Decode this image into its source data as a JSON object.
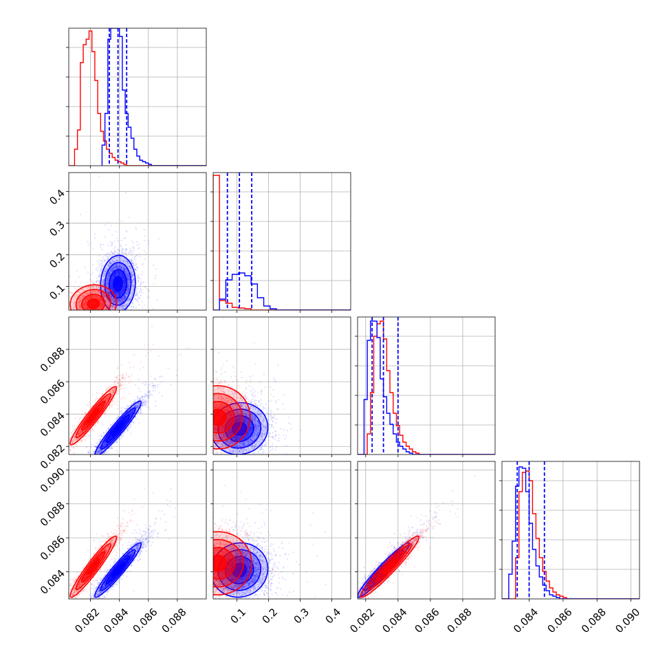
{
  "chart_data": {
    "type": "corner",
    "title": "",
    "grid": true,
    "legend": "",
    "colors": {
      "series_a": "#ff0000",
      "series_b": "#0000ff"
    },
    "parameters": [
      {
        "range": [
          0.0805,
          0.09
        ],
        "ticks": [
          "0.082",
          "0.084",
          "0.086",
          "0.088"
        ]
      },
      {
        "range": [
          0.025,
          0.46
        ],
        "ticks": [
          "0.1",
          "0.2",
          "0.3",
          "0.4"
        ]
      },
      {
        "range": [
          0.0815,
          0.09
        ],
        "ticks": [
          "0.082",
          "0.084",
          "0.086",
          "0.088"
        ]
      },
      {
        "range": [
          0.0824,
          0.0905
        ],
        "ticks": [
          "0.084",
          "0.086",
          "0.088",
          "0.090"
        ]
      }
    ],
    "marginals": [
      {
        "blue_bins": [
          [
            0.0828,
            0.083,
            0.15
          ],
          [
            0.083,
            0.0832,
            0.38
          ],
          [
            0.0832,
            0.0834,
            0.92
          ],
          [
            0.0834,
            0.0836,
            1.0
          ],
          [
            0.0836,
            0.0838,
            1.0
          ],
          [
            0.0838,
            0.084,
            1.0
          ],
          [
            0.084,
            0.0842,
            0.94
          ],
          [
            0.0842,
            0.0844,
            0.55
          ],
          [
            0.0844,
            0.0846,
            0.38
          ],
          [
            0.0846,
            0.0848,
            0.28
          ],
          [
            0.0848,
            0.085,
            0.2
          ],
          [
            0.085,
            0.0852,
            0.12
          ],
          [
            0.0852,
            0.0854,
            0.07
          ],
          [
            0.0854,
            0.0856,
            0.04
          ],
          [
            0.0856,
            0.0858,
            0.03
          ],
          [
            0.0858,
            0.086,
            0.02
          ],
          [
            0.086,
            0.0862,
            0.01
          ]
        ],
        "red_bins": [
          [
            0.0805,
            0.0809,
            0.0
          ],
          [
            0.0809,
            0.0811,
            0.12
          ],
          [
            0.0811,
            0.0813,
            0.26
          ],
          [
            0.0813,
            0.0815,
            0.75
          ],
          [
            0.0815,
            0.0817,
            0.88
          ],
          [
            0.0817,
            0.0819,
            0.92
          ],
          [
            0.0819,
            0.0821,
            0.98
          ],
          [
            0.0821,
            0.0823,
            0.83
          ],
          [
            0.0823,
            0.0825,
            0.62
          ],
          [
            0.0825,
            0.0827,
            0.38
          ],
          [
            0.0827,
            0.0829,
            0.25
          ],
          [
            0.0829,
            0.0831,
            0.18
          ],
          [
            0.0831,
            0.0833,
            0.12
          ],
          [
            0.0833,
            0.0835,
            0.09
          ],
          [
            0.0835,
            0.0837,
            0.06
          ],
          [
            0.0837,
            0.0839,
            0.04
          ],
          [
            0.0839,
            0.0841,
            0.03
          ],
          [
            0.0841,
            0.0843,
            0.02
          ],
          [
            0.0843,
            0.0845,
            0.01
          ]
        ],
        "quantiles": [
          0.0833,
          0.0839,
          0.0845
        ]
      },
      {
        "blue_bins": [
          [
            0.025,
            0.045,
            0.0
          ],
          [
            0.045,
            0.065,
            0.08
          ],
          [
            0.065,
            0.085,
            0.22
          ],
          [
            0.085,
            0.105,
            0.26
          ],
          [
            0.105,
            0.125,
            0.27
          ],
          [
            0.125,
            0.145,
            0.25
          ],
          [
            0.145,
            0.165,
            0.19
          ],
          [
            0.165,
            0.185,
            0.09
          ],
          [
            0.185,
            0.205,
            0.03
          ],
          [
            0.205,
            0.225,
            0.01
          ]
        ],
        "red_bins": [
          [
            0.025,
            0.045,
            0.98
          ],
          [
            0.045,
            0.065,
            0.07
          ],
          [
            0.065,
            0.085,
            0.05
          ],
          [
            0.085,
            0.105,
            0.02
          ],
          [
            0.105,
            0.125,
            0.015
          ],
          [
            0.125,
            0.145,
            0.01
          ]
        ],
        "quantiles": [
          0.07,
          0.108,
          0.147
        ]
      },
      {
        "blue_bins": [
          [
            0.0815,
            0.0819,
            0.0
          ],
          [
            0.0819,
            0.0821,
            0.4
          ],
          [
            0.0821,
            0.0823,
            0.83
          ],
          [
            0.0823,
            0.0825,
            0.97
          ],
          [
            0.0825,
            0.0827,
            0.97
          ],
          [
            0.0827,
            0.0829,
            0.85
          ],
          [
            0.0829,
            0.0831,
            0.55
          ],
          [
            0.0831,
            0.0833,
            0.42
          ],
          [
            0.0833,
            0.0835,
            0.3
          ],
          [
            0.0835,
            0.0837,
            0.22
          ],
          [
            0.0837,
            0.0839,
            0.15
          ],
          [
            0.0839,
            0.0841,
            0.09
          ],
          [
            0.0841,
            0.0843,
            0.06
          ],
          [
            0.0843,
            0.0845,
            0.04
          ],
          [
            0.0845,
            0.0847,
            0.02
          ],
          [
            0.0847,
            0.0849,
            0.01
          ]
        ],
        "red_bins": [
          [
            0.0815,
            0.0821,
            0.0
          ],
          [
            0.0821,
            0.0823,
            0.15
          ],
          [
            0.0823,
            0.0825,
            0.45
          ],
          [
            0.0825,
            0.0827,
            0.86
          ],
          [
            0.0827,
            0.0829,
            0.95
          ],
          [
            0.0829,
            0.0831,
            0.97
          ],
          [
            0.0831,
            0.0833,
            0.84
          ],
          [
            0.0833,
            0.0835,
            0.61
          ],
          [
            0.0835,
            0.0837,
            0.45
          ],
          [
            0.0837,
            0.0839,
            0.3
          ],
          [
            0.0839,
            0.0841,
            0.21
          ],
          [
            0.0841,
            0.0843,
            0.14
          ],
          [
            0.0843,
            0.0845,
            0.09
          ],
          [
            0.0845,
            0.0847,
            0.06
          ],
          [
            0.0847,
            0.0849,
            0.04
          ],
          [
            0.0849,
            0.0851,
            0.02
          ],
          [
            0.0851,
            0.0853,
            0.01
          ]
        ],
        "quantiles": [
          0.0824,
          0.0831,
          0.084
        ]
      },
      {
        "blue_bins": [
          [
            0.0824,
            0.0828,
            0.0
          ],
          [
            0.0828,
            0.083,
            0.18
          ],
          [
            0.083,
            0.0832,
            0.42
          ],
          [
            0.0832,
            0.0834,
            0.82
          ],
          [
            0.0834,
            0.0836,
            0.96
          ],
          [
            0.0836,
            0.0838,
            0.95
          ],
          [
            0.0838,
            0.084,
            0.78
          ],
          [
            0.084,
            0.0842,
            0.55
          ],
          [
            0.0842,
            0.0844,
            0.36
          ],
          [
            0.0844,
            0.0846,
            0.24
          ],
          [
            0.0846,
            0.0848,
            0.16
          ],
          [
            0.0848,
            0.085,
            0.1
          ],
          [
            0.085,
            0.0852,
            0.06
          ],
          [
            0.0852,
            0.0854,
            0.03
          ],
          [
            0.0854,
            0.0856,
            0.02
          ],
          [
            0.0856,
            0.0858,
            0.01
          ]
        ],
        "red_bins": [
          [
            0.0824,
            0.0832,
            0.0
          ],
          [
            0.0832,
            0.0834,
            0.3
          ],
          [
            0.0834,
            0.0836,
            0.78
          ],
          [
            0.0836,
            0.0838,
            0.92
          ],
          [
            0.0838,
            0.084,
            0.93
          ],
          [
            0.084,
            0.0842,
            0.86
          ],
          [
            0.0842,
            0.0844,
            0.62
          ],
          [
            0.0844,
            0.0846,
            0.44
          ],
          [
            0.0846,
            0.0848,
            0.3
          ],
          [
            0.0848,
            0.085,
            0.2
          ],
          [
            0.085,
            0.0852,
            0.13
          ],
          [
            0.0852,
            0.0854,
            0.08
          ],
          [
            0.0854,
            0.0856,
            0.05
          ],
          [
            0.0856,
            0.0858,
            0.03
          ],
          [
            0.0858,
            0.086,
            0.02
          ],
          [
            0.086,
            0.0862,
            0.01
          ]
        ],
        "quantiles": [
          0.0833,
          0.084,
          0.0849
        ]
      }
    ],
    "joints": [
      {
        "row": 1,
        "col": 0,
        "blue": {
          "center": [
            0.0839,
            0.108
          ],
          "sd": [
            0.0006,
            0.045
          ],
          "rho": 0.05,
          "n": 3000
        },
        "red": {
          "center": [
            0.0822,
            0.045
          ],
          "sd": [
            0.0008,
            0.03
          ],
          "rho": 0.05,
          "n": 1200
        }
      },
      {
        "row": 2,
        "col": 0,
        "blue": {
          "center": [
            0.0839,
            0.0831
          ],
          "sd": [
            0.0008,
            0.00085
          ],
          "rho": 0.95,
          "n": 3000
        },
        "red": {
          "center": [
            0.0822,
            0.0839
          ],
          "sd": [
            0.0008,
            0.0009
          ],
          "rho": 0.95,
          "n": 2000
        }
      },
      {
        "row": 2,
        "col": 1,
        "blue": {
          "center": [
            0.108,
            0.0831
          ],
          "sd": [
            0.045,
            0.0008
          ],
          "rho": 0.05,
          "n": 3000
        },
        "red": {
          "center": [
            0.04,
            0.0838
          ],
          "sd": [
            0.05,
            0.001
          ],
          "rho": 0.0,
          "n": 1600
        }
      },
      {
        "row": 3,
        "col": 0,
        "blue": {
          "center": [
            0.0839,
            0.0841
          ],
          "sd": [
            0.0008,
            0.0008
          ],
          "rho": 0.95,
          "n": 3000
        },
        "red": {
          "center": [
            0.0822,
            0.0843
          ],
          "sd": [
            0.0008,
            0.0009
          ],
          "rho": 0.95,
          "n": 2000
        }
      },
      {
        "row": 3,
        "col": 1,
        "blue": {
          "center": [
            0.108,
            0.0841
          ],
          "sd": [
            0.045,
            0.0008
          ],
          "rho": 0.05,
          "n": 3000
        },
        "red": {
          "center": [
            0.04,
            0.0845
          ],
          "sd": [
            0.05,
            0.001
          ],
          "rho": 0.0,
          "n": 1600
        }
      },
      {
        "row": 3,
        "col": 2,
        "blue": {
          "center": [
            0.0831,
            0.0841
          ],
          "sd": [
            0.0008,
            0.0008
          ],
          "rho": 0.96,
          "n": 3000
        },
        "red": {
          "center": [
            0.0835,
            0.0843
          ],
          "sd": [
            0.0009,
            0.0009
          ],
          "rho": 0.96,
          "n": 2000
        }
      }
    ]
  }
}
